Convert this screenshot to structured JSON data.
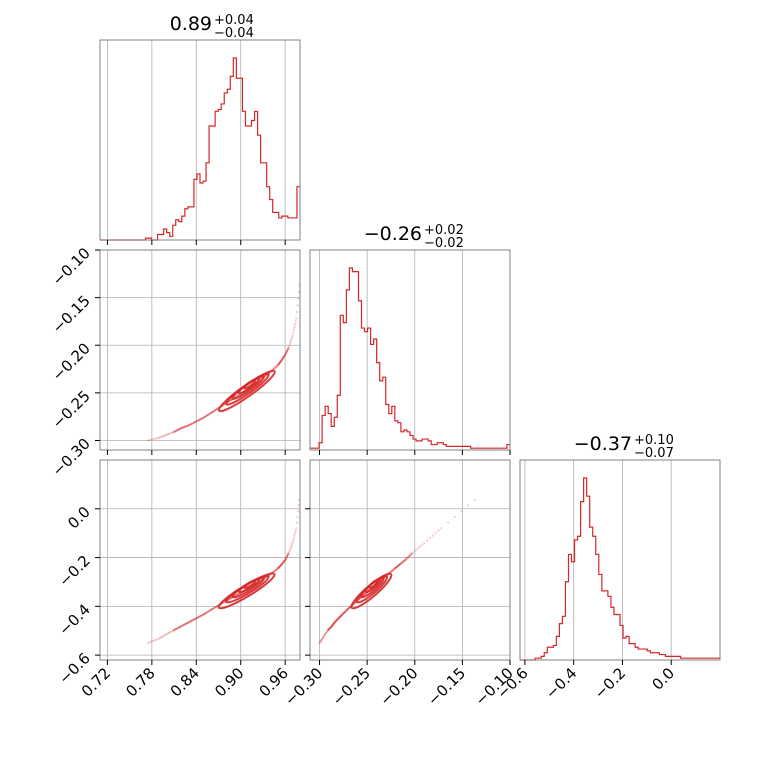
{
  "chart_data": {
    "type": "corner",
    "color": "#d62728",
    "parameters": [
      {
        "range": [
          0.71,
          0.98
        ],
        "ticks": [
          0.72,
          0.78,
          0.84,
          0.9,
          0.96
        ],
        "tick_labels": [
          "0.72",
          "0.78",
          "0.84",
          "0.90",
          "0.96"
        ],
        "median": "0.89",
        "err_plus": "+0.04",
        "err_minus": "−0.04"
      },
      {
        "range": [
          -0.31,
          -0.1
        ],
        "ticks": [
          -0.3,
          -0.25,
          -0.2,
          -0.15,
          -0.1
        ],
        "tick_labels": [
          "−0.30",
          "−0.25",
          "−0.20",
          "−0.15",
          "−0.10"
        ],
        "median": "−0.26",
        "err_plus": "+0.02",
        "err_minus": "−0.02"
      },
      {
        "range": [
          -0.62,
          0.2
        ],
        "ticks": [
          -0.6,
          -0.4,
          -0.2,
          0.0
        ],
        "tick_labels": [
          "−0.6",
          "−0.4",
          "−0.2",
          "0.0"
        ],
        "median": "−0.37",
        "err_plus": "+0.10",
        "err_minus": "−0.07"
      }
    ],
    "histograms": [
      [
        0,
        0,
        0,
        0,
        0,
        0,
        0,
        0,
        0,
        0,
        0,
        0,
        0,
        0,
        0,
        1,
        1,
        0,
        0,
        3,
        3,
        6,
        4,
        2,
        8,
        11,
        10,
        13,
        17,
        18,
        18,
        33,
        36,
        31,
        32,
        42,
        62,
        62,
        70,
        71,
        74,
        80,
        82,
        89,
        99,
        88,
        88,
        70,
        62,
        62,
        65,
        70,
        57,
        42,
        42,
        29,
        22,
        15,
        15,
        12,
        13,
        13,
        12,
        12,
        12,
        29
      ],
      [
        1,
        1,
        1,
        4,
        19,
        24,
        20,
        13,
        18,
        30,
        74,
        70,
        88,
        100,
        98,
        98,
        82,
        67,
        65,
        67,
        58,
        61,
        48,
        38,
        40,
        25,
        20,
        24,
        16,
        15,
        10,
        11,
        10,
        8,
        6,
        5,
        5,
        6,
        6,
        5,
        3,
        3,
        4,
        4,
        3,
        2,
        2,
        2,
        2,
        2,
        2,
        2,
        2,
        1,
        1,
        1,
        1,
        1,
        1,
        1,
        1,
        1,
        1,
        1,
        1,
        3
      ],
      [
        0,
        0,
        0,
        0,
        0,
        1,
        1,
        2,
        4,
        7,
        7,
        8,
        13,
        20,
        24,
        43,
        58,
        54,
        66,
        68,
        87,
        100,
        90,
        73,
        68,
        58,
        47,
        38,
        38,
        35,
        29,
        25,
        25,
        19,
        12,
        13,
        9,
        9,
        7,
        6,
        6,
        6,
        5,
        4,
        4,
        4,
        3,
        3,
        2,
        2,
        2,
        2,
        2,
        1,
        1,
        1,
        1,
        1,
        1,
        1,
        1,
        1,
        1,
        1,
        1,
        1
      ]
    ],
    "pair_samples": {
      "x0": [
        0.775,
        0.79,
        0.8,
        0.81,
        0.82,
        0.83,
        0.84,
        0.85,
        0.86,
        0.87,
        0.88,
        0.89,
        0.9,
        0.91,
        0.92,
        0.93,
        0.94,
        0.95,
        0.955,
        0.96,
        0.965,
        0.97,
        0.975,
        0.98
      ],
      "x1": [
        -0.3,
        -0.297,
        -0.294,
        -0.291,
        -0.287,
        -0.284,
        -0.28,
        -0.276,
        -0.271,
        -0.266,
        -0.261,
        -0.256,
        -0.251,
        -0.246,
        -0.24,
        -0.234,
        -0.228,
        -0.221,
        -0.216,
        -0.21,
        -0.202,
        -0.19,
        -0.172,
        -0.13
      ],
      "x2": [
        -0.55,
        -0.532,
        -0.514,
        -0.497,
        -0.481,
        -0.465,
        -0.449,
        -0.433,
        -0.414,
        -0.396,
        -0.378,
        -0.361,
        -0.344,
        -0.327,
        -0.309,
        -0.289,
        -0.268,
        -0.245,
        -0.229,
        -0.21,
        -0.18,
        -0.14,
        -0.08,
        0.06
      ]
    }
  }
}
